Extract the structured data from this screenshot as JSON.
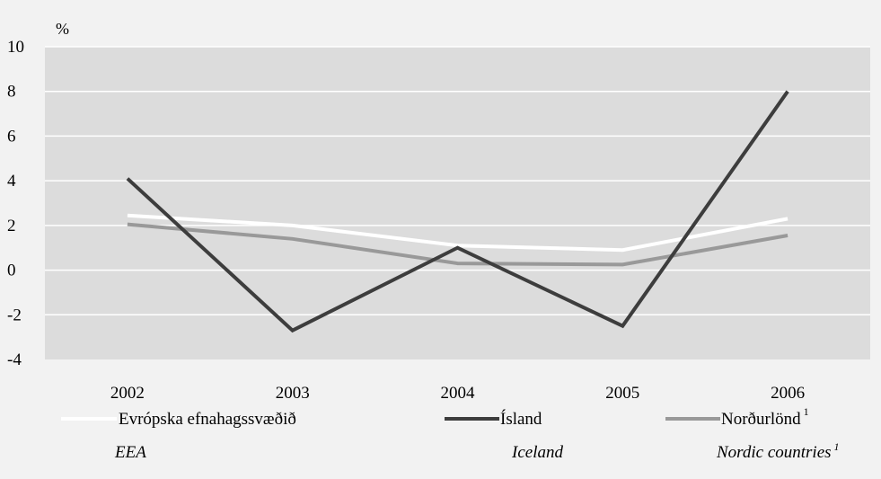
{
  "chart_data": {
    "type": "line",
    "unit_label": "%",
    "categories": [
      "2002",
      "2003",
      "2004",
      "2005",
      "2006"
    ],
    "ylim": [
      -4,
      10
    ],
    "yticks": [
      10,
      8,
      6,
      4,
      2,
      0,
      -2,
      -4
    ],
    "ytick_labels": [
      "10",
      "8",
      "6",
      "4",
      "2",
      "0",
      "-2",
      "-4"
    ],
    "grid": "horizontal",
    "legend_position": "bottom",
    "series": [
      {
        "key": "eea",
        "name": "Evrópska efnahagssvæðið",
        "name_en": "EEA",
        "color": "#ffffff",
        "values": [
          2.45,
          2.0,
          1.1,
          0.9,
          2.3
        ]
      },
      {
        "key": "iceland",
        "name": "Ísland",
        "name_en": "Iceland",
        "color": "#3d3d3d",
        "values": [
          4.1,
          -2.7,
          1.0,
          -2.5,
          8.0
        ]
      },
      {
        "key": "nordic",
        "name": "Norðurlönd",
        "name_en": "Nordic countries",
        "color": "#999999",
        "values": [
          2.05,
          1.4,
          0.3,
          0.25,
          1.55
        ]
      }
    ],
    "footnote_mark": "1",
    "colors": {
      "background": "#f2f2f2",
      "plot_area": "#dcdcdc",
      "gridline": "#ffffff"
    }
  }
}
